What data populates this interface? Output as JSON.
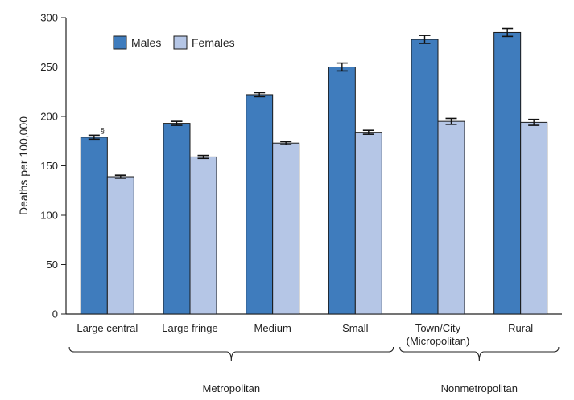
{
  "chart_data": {
    "type": "bar",
    "ylabel": "Deaths per 100,000",
    "ylim": [
      0,
      300
    ],
    "yticks": [
      "0",
      "50",
      "100",
      "150",
      "200",
      "250",
      "300"
    ],
    "categories": [
      {
        "line1": "Large central",
        "line2": ""
      },
      {
        "line1": "Large fringe",
        "line2": ""
      },
      {
        "line1": "Medium",
        "line2": ""
      },
      {
        "line1": "Small",
        "line2": ""
      },
      {
        "line1": "Town/City",
        "line2": "(Micropolitan)"
      },
      {
        "line1": "Rural",
        "line2": ""
      }
    ],
    "series": [
      {
        "name": "Males",
        "color": "#3f7cbd",
        "values": [
          179,
          193,
          222,
          250,
          278,
          285
        ],
        "error": [
          2,
          2,
          2,
          4,
          4,
          4
        ]
      },
      {
        "name": "Females",
        "color": "#b5c6e6",
        "values": [
          139,
          159,
          173,
          184,
          195,
          194
        ],
        "error": [
          1.5,
          1.5,
          1.5,
          2,
          3,
          3
        ]
      }
    ],
    "groups": [
      {
        "label": "Metropolitan",
        "from": 0,
        "to": 3
      },
      {
        "label": "Nonmetropolitan",
        "from": 4,
        "to": 5
      }
    ],
    "annotation": {
      "text": "§",
      "category": 0,
      "series": 0
    },
    "legend_position": "top-left",
    "grid": false
  }
}
